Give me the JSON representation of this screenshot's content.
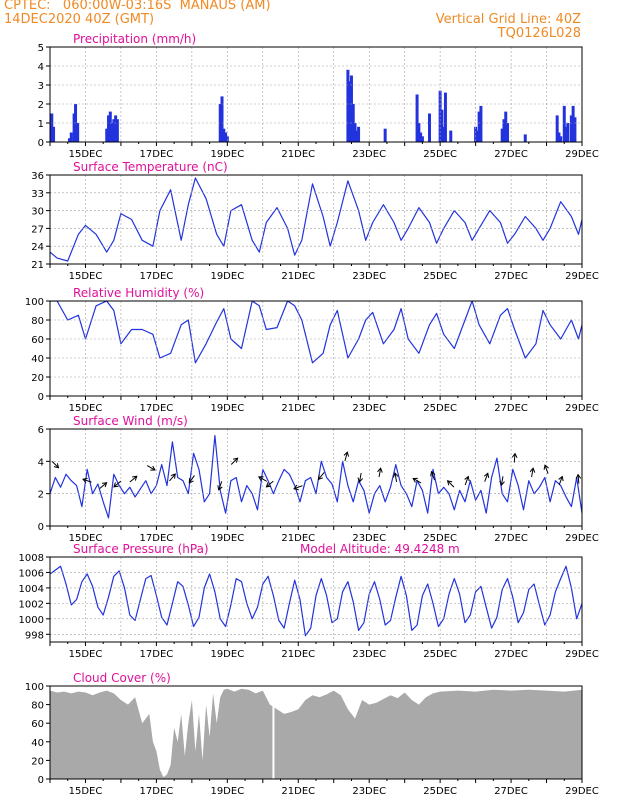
{
  "header": {
    "line1": "CPTEC:   060:00W-03:16S  MANAUS (AM)",
    "line2": "14DEC2020 40Z (GMT)",
    "right1": "Vertical Grid Line: 40Z",
    "right2": "TQ0126L028"
  },
  "colors": {
    "header": "#f08a24",
    "title": "#e0109a",
    "series": "#2233dd",
    "cloud": "#a9a9a9",
    "grid": "#a0a0a0",
    "arrow": "#000000"
  },
  "chart_data": [
    {
      "id": "precip",
      "type": "bar",
      "title": "Precipitation (mm/h)",
      "ylim": [
        0,
        5
      ],
      "yticks": [
        "0",
        "1",
        "2",
        "3",
        "4",
        "5"
      ],
      "xlim": [
        14.0,
        29.0
      ],
      "xticks": [
        "15DEC",
        "17DEC",
        "19DEC",
        "21DEC",
        "23DEC",
        "25DEC",
        "27DEC",
        "29DEC"
      ],
      "grid": true,
      "x": [
        14.05,
        14.1,
        14.55,
        14.6,
        14.68,
        14.72,
        14.78,
        15.6,
        15.65,
        15.7,
        15.75,
        15.8,
        15.85,
        15.9,
        18.8,
        18.85,
        18.9,
        18.95,
        19.0,
        22.4,
        22.45,
        22.5,
        22.55,
        22.6,
        22.65,
        22.7,
        23.45,
        24.35,
        24.4,
        24.45,
        24.5,
        24.7,
        25.0,
        25.05,
        25.1,
        25.15,
        25.3,
        26.0,
        26.05,
        26.1,
        26.15,
        26.75,
        26.8,
        26.85,
        26.9,
        27.4,
        28.3,
        28.35,
        28.4,
        28.5,
        28.55,
        28.6,
        28.7,
        28.75,
        28.8
      ],
      "values": [
        1.5,
        0.8,
        0.2,
        0.5,
        1.5,
        2.0,
        1.0,
        0.7,
        1.4,
        1.6,
        1.0,
        1.2,
        1.4,
        1.2,
        2.0,
        2.4,
        0.7,
        0.5,
        0.3,
        3.8,
        3.2,
        3.5,
        2.0,
        1.0,
        0.6,
        0.8,
        0.7,
        2.5,
        1.0,
        0.5,
        0.3,
        1.5,
        2.7,
        1.7,
        0.8,
        2.6,
        0.6,
        0.8,
        0.6,
        1.6,
        1.9,
        0.7,
        1.2,
        1.6,
        1.0,
        0.4,
        1.4,
        0.5,
        0.3,
        1.9,
        0.8,
        1.0,
        1.4,
        1.9,
        1.3
      ]
    },
    {
      "id": "temp",
      "type": "line",
      "title": "Surface Temperature (nC)",
      "ylim": [
        21,
        36
      ],
      "yticks": [
        "21",
        "24",
        "27",
        "30",
        "33",
        "36"
      ],
      "xlim": [
        14.0,
        29.0
      ],
      "xticks": [
        "15DEC",
        "17DEC",
        "19DEC",
        "21DEC",
        "23DEC",
        "25DEC",
        "27DEC",
        "29DEC"
      ],
      "grid": true,
      "x": [
        14.0,
        14.2,
        14.5,
        14.8,
        15.0,
        15.3,
        15.6,
        15.8,
        16.0,
        16.3,
        16.6,
        16.9,
        17.1,
        17.4,
        17.7,
        17.9,
        18.1,
        18.4,
        18.7,
        18.9,
        19.1,
        19.4,
        19.7,
        19.9,
        20.1,
        20.4,
        20.7,
        20.9,
        21.1,
        21.4,
        21.7,
        21.9,
        22.1,
        22.4,
        22.7,
        22.9,
        23.1,
        23.4,
        23.7,
        23.9,
        24.1,
        24.4,
        24.7,
        24.9,
        25.1,
        25.4,
        25.7,
        25.9,
        26.1,
        26.4,
        26.7,
        26.9,
        27.1,
        27.4,
        27.7,
        27.9,
        28.1,
        28.4,
        28.7,
        28.9,
        29.0
      ],
      "values": [
        23,
        22,
        21.5,
        26,
        27.5,
        26,
        23,
        25,
        29.5,
        28.5,
        25,
        24,
        30,
        33.5,
        25,
        31,
        35.5,
        32,
        26,
        24,
        30,
        31,
        25,
        23,
        28,
        30.5,
        27,
        22.5,
        25,
        34.5,
        29,
        24,
        28,
        35,
        30,
        25,
        28,
        31,
        28,
        25,
        27,
        30.5,
        28,
        24.5,
        27,
        30,
        28,
        25,
        27,
        30,
        28,
        24.5,
        26,
        29,
        27,
        25,
        27,
        31.5,
        29,
        26,
        28.5
      ]
    },
    {
      "id": "rh",
      "type": "line",
      "title": "Relative Humidity (%)",
      "ylim": [
        0,
        100
      ],
      "yticks": [
        "0",
        "20",
        "40",
        "60",
        "80",
        "100"
      ],
      "xlim": [
        14.0,
        29.0
      ],
      "xticks": [
        "15DEC",
        "17DEC",
        "19DEC",
        "21DEC",
        "23DEC",
        "25DEC",
        "27DEC",
        "29DEC"
      ],
      "grid": true,
      "x": [
        14.0,
        14.2,
        14.5,
        14.8,
        15.0,
        15.3,
        15.6,
        15.8,
        16.0,
        16.3,
        16.6,
        16.9,
        17.1,
        17.4,
        17.7,
        17.9,
        18.1,
        18.4,
        18.7,
        18.9,
        19.1,
        19.4,
        19.7,
        19.9,
        20.1,
        20.4,
        20.7,
        20.9,
        21.1,
        21.4,
        21.7,
        21.9,
        22.1,
        22.4,
        22.7,
        22.9,
        23.1,
        23.4,
        23.7,
        23.9,
        24.1,
        24.4,
        24.7,
        24.9,
        25.1,
        25.4,
        25.7,
        25.9,
        26.1,
        26.4,
        26.7,
        26.9,
        27.1,
        27.4,
        27.7,
        27.9,
        28.1,
        28.4,
        28.7,
        28.9,
        29.0
      ],
      "values": [
        100,
        100,
        80,
        85,
        60,
        95,
        100,
        90,
        55,
        70,
        70,
        65,
        40,
        45,
        75,
        80,
        35,
        55,
        78,
        92,
        60,
        50,
        100,
        95,
        70,
        72,
        100,
        95,
        80,
        35,
        45,
        75,
        90,
        40,
        60,
        80,
        88,
        55,
        70,
        92,
        60,
        45,
        75,
        87,
        65,
        50,
        80,
        100,
        75,
        55,
        85,
        92,
        70,
        40,
        55,
        90,
        75,
        60,
        80,
        60,
        75
      ]
    },
    {
      "id": "wind",
      "type": "line",
      "title": "Surface Wind (m/s)",
      "ylim": [
        0,
        6
      ],
      "yticks": [
        "0",
        "2",
        "4",
        "6"
      ],
      "xlim": [
        14.0,
        29.0
      ],
      "xticks": [
        "15DEC",
        "17DEC",
        "19DEC",
        "21DEC",
        "23DEC",
        "25DEC",
        "27DEC",
        "29DEC"
      ],
      "grid": true,
      "x": [
        14.0,
        14.15,
        14.3,
        14.45,
        14.6,
        14.75,
        14.9,
        15.05,
        15.2,
        15.35,
        15.5,
        15.65,
        15.8,
        15.95,
        16.1,
        16.25,
        16.4,
        16.55,
        16.7,
        16.85,
        17.0,
        17.15,
        17.3,
        17.45,
        17.6,
        17.75,
        17.9,
        18.05,
        18.2,
        18.35,
        18.5,
        18.65,
        18.8,
        18.95,
        19.1,
        19.25,
        19.4,
        19.55,
        19.7,
        19.85,
        20.0,
        20.15,
        20.3,
        20.45,
        20.6,
        20.75,
        20.9,
        21.05,
        21.2,
        21.35,
        21.5,
        21.65,
        21.8,
        21.95,
        22.1,
        22.25,
        22.4,
        22.55,
        22.7,
        22.85,
        23.0,
        23.15,
        23.3,
        23.45,
        23.6,
        23.75,
        23.9,
        24.05,
        24.2,
        24.35,
        24.5,
        24.65,
        24.8,
        24.95,
        25.1,
        25.25,
        25.4,
        25.55,
        25.7,
        25.85,
        26.0,
        26.15,
        26.3,
        26.45,
        26.6,
        26.75,
        26.9,
        27.05,
        27.2,
        27.35,
        27.5,
        27.65,
        27.8,
        27.95,
        28.1,
        28.25,
        28.4,
        28.55,
        28.7,
        28.85,
        29.0
      ],
      "values": [
        2.0,
        3.0,
        2.4,
        3.2,
        2.8,
        2.5,
        1.2,
        3.5,
        2.0,
        2.6,
        1.5,
        0.5,
        3.2,
        2.5,
        2.0,
        2.4,
        1.8,
        2.3,
        2.8,
        2.0,
        2.5,
        3.8,
        2.5,
        5.2,
        3.0,
        2.8,
        2.0,
        4.5,
        3.5,
        1.5,
        2.0,
        5.6,
        2.2,
        0.8,
        2.8,
        3.0,
        1.5,
        2.5,
        2.0,
        1.0,
        3.5,
        2.8,
        2.0,
        2.8,
        3.5,
        3.2,
        2.5,
        1.5,
        2.8,
        3.0,
        2.0,
        4.0,
        3.0,
        2.6,
        1.5,
        4.0,
        2.5,
        1.5,
        2.8,
        2.2,
        0.8,
        2.0,
        2.5,
        1.5,
        2.4,
        3.8,
        2.5,
        2.0,
        1.2,
        2.8,
        2.2,
        0.8,
        3.5,
        2.0,
        2.4,
        2.0,
        1.0,
        2.2,
        1.5,
        2.8,
        1.6,
        2.2,
        0.8,
        3.0,
        4.2,
        2.0,
        1.5,
        3.5,
        2.5,
        1.0,
        2.8,
        2.0,
        2.4,
        3.0,
        1.5,
        2.8,
        2.5,
        1.8,
        1.2,
        3.0,
        0.8
      ]
    },
    {
      "id": "press",
      "type": "line",
      "title": "Surface Pressure (hPa)",
      "annotation": "Model Altitude: 49.4248 m",
      "ylim": [
        997,
        1008
      ],
      "yticks": [
        "998",
        "1000",
        "1002",
        "1004",
        "1006",
        "1008"
      ],
      "xlim": [
        14.0,
        29.0
      ],
      "xticks": [
        "15DEC",
        "17DEC",
        "19DEC",
        "21DEC",
        "23DEC",
        "25DEC",
        "27DEC",
        "29DEC"
      ],
      "grid": true,
      "x": [
        14.0,
        14.15,
        14.3,
        14.45,
        14.6,
        14.75,
        14.9,
        15.05,
        15.2,
        15.35,
        15.5,
        15.65,
        15.8,
        15.95,
        16.1,
        16.25,
        16.4,
        16.55,
        16.7,
        16.85,
        17.0,
        17.15,
        17.3,
        17.45,
        17.6,
        17.75,
        17.9,
        18.05,
        18.2,
        18.35,
        18.5,
        18.65,
        18.8,
        18.95,
        19.1,
        19.25,
        19.4,
        19.55,
        19.7,
        19.85,
        20.0,
        20.15,
        20.3,
        20.45,
        20.6,
        20.75,
        20.9,
        21.05,
        21.2,
        21.35,
        21.5,
        21.65,
        21.8,
        21.95,
        22.1,
        22.25,
        22.4,
        22.55,
        22.7,
        22.85,
        23.0,
        23.15,
        23.3,
        23.45,
        23.6,
        23.75,
        23.9,
        24.05,
        24.2,
        24.35,
        24.5,
        24.65,
        24.8,
        24.95,
        25.1,
        25.25,
        25.4,
        25.55,
        25.7,
        25.85,
        26.0,
        26.15,
        26.3,
        26.45,
        26.6,
        26.75,
        26.9,
        27.05,
        27.2,
        27.35,
        27.5,
        27.65,
        27.8,
        27.95,
        28.1,
        28.25,
        28.4,
        28.55,
        28.7,
        28.85,
        29.0
      ],
      "values": [
        1005.8,
        1006.3,
        1006.8,
        1004.5,
        1001.8,
        1002.5,
        1004.8,
        1005.8,
        1004.2,
        1001.5,
        1000.5,
        1002.8,
        1005.5,
        1006.2,
        1004.0,
        1000.5,
        999.8,
        1002.5,
        1005.2,
        1005.6,
        1003.0,
        1000.2,
        999.2,
        1002.0,
        1004.8,
        1004.2,
        1001.8,
        999.0,
        1000.2,
        1004.0,
        1005.8,
        1003.5,
        1000.0,
        999.0,
        1001.8,
        1005.2,
        1004.8,
        1002.0,
        1000.0,
        1001.5,
        1004.5,
        1005.5,
        1003.0,
        999.8,
        998.8,
        1002.0,
        1005.0,
        1002.5,
        997.8,
        998.8,
        1003.0,
        1005.2,
        1003.0,
        999.5,
        1000.0,
        1003.5,
        1004.8,
        1002.2,
        998.5,
        999.5,
        1003.2,
        1004.8,
        1002.5,
        999.2,
        999.8,
        1002.8,
        1005.5,
        1003.0,
        998.5,
        999.2,
        1003.0,
        1004.5,
        1002.0,
        999.0,
        1000.0,
        1003.2,
        1005.2,
        1003.2,
        999.5,
        1000.5,
        1003.5,
        1004.2,
        1001.5,
        998.8,
        1000.2,
        1003.8,
        1005.2,
        1002.8,
        999.5,
        1000.8,
        1003.8,
        1004.5,
        1001.8,
        999.2,
        1000.5,
        1003.5,
        1005.2,
        1006.8,
        1004.0,
        1000.0,
        1002.0
      ]
    },
    {
      "id": "cloud",
      "type": "area",
      "title": "Cloud Cover (%)",
      "ylim": [
        0,
        100
      ],
      "yticks": [
        "0",
        "20",
        "40",
        "60",
        "80",
        "100"
      ],
      "xlim": [
        14.0,
        29.0
      ],
      "xticks": [
        "15DEC",
        "17DEC",
        "19DEC",
        "21DEC",
        "23DEC",
        "25DEC",
        "27DEC",
        "29DEC"
      ],
      "grid": false,
      "x": [
        14.0,
        14.2,
        14.4,
        14.6,
        14.8,
        15.0,
        15.2,
        15.4,
        15.6,
        15.8,
        16.0,
        16.2,
        16.4,
        16.6,
        16.8,
        16.9,
        17.0,
        17.1,
        17.2,
        17.3,
        17.4,
        17.5,
        17.6,
        17.7,
        17.8,
        17.9,
        18.0,
        18.1,
        18.2,
        18.3,
        18.4,
        18.5,
        18.6,
        18.7,
        18.8,
        18.9,
        19.0,
        19.2,
        19.4,
        19.6,
        19.8,
        20.0,
        20.2,
        20.4,
        20.6,
        20.8,
        21.0,
        21.2,
        21.4,
        21.6,
        21.8,
        22.0,
        22.2,
        22.4,
        22.6,
        22.8,
        23.0,
        23.2,
        23.4,
        23.6,
        23.8,
        24.0,
        24.2,
        24.4,
        24.6,
        24.8,
        25.0,
        25.5,
        26.0,
        26.5,
        27.0,
        27.5,
        28.0,
        28.5,
        29.0
      ],
      "values": [
        95,
        93,
        94,
        92,
        94,
        93,
        90,
        93,
        95,
        92,
        85,
        80,
        88,
        60,
        70,
        40,
        30,
        10,
        2,
        5,
        15,
        55,
        40,
        70,
        25,
        60,
        85,
        30,
        70,
        20,
        80,
        45,
        92,
        60,
        88,
        96,
        97,
        94,
        97,
        96,
        92,
        95,
        80,
        75,
        70,
        72,
        75,
        85,
        90,
        88,
        91,
        95,
        90,
        75,
        65,
        85,
        80,
        82,
        86,
        90,
        87,
        93,
        85,
        80,
        88,
        92,
        94,
        95,
        94,
        96,
        95,
        96,
        95,
        94,
        96
      ],
      "notch_x": 20.3
    }
  ],
  "wind_arrows": [
    {
      "x": 14.15,
      "v": 3.8,
      "dir": 135
    },
    {
      "x": 15.05,
      "v": 2.8,
      "dir": 290
    },
    {
      "x": 15.5,
      "v": 2.5,
      "dir": 50
    },
    {
      "x": 15.9,
      "v": 2.6,
      "dir": 230
    },
    {
      "x": 16.35,
      "v": 2.9,
      "dir": 50
    },
    {
      "x": 16.85,
      "v": 3.6,
      "dir": 120
    },
    {
      "x": 17.45,
      "v": 3.0,
      "dir": 40
    },
    {
      "x": 18.0,
      "v": 2.9,
      "dir": 215
    },
    {
      "x": 18.8,
      "v": 2.5,
      "dir": 200
    },
    {
      "x": 19.2,
      "v": 4.0,
      "dir": 45
    },
    {
      "x": 20.0,
      "v": 2.9,
      "dir": 300
    },
    {
      "x": 20.2,
      "v": 2.6,
      "dir": 230
    },
    {
      "x": 21.0,
      "v": 2.4,
      "dir": 250
    },
    {
      "x": 21.65,
      "v": 3.1,
      "dir": 220
    },
    {
      "x": 22.35,
      "v": 4.3,
      "dir": 15
    },
    {
      "x": 22.75,
      "v": 3.0,
      "dir": 190
    },
    {
      "x": 23.3,
      "v": 3.3,
      "dir": 10
    },
    {
      "x": 23.75,
      "v": 3.0,
      "dir": 350
    },
    {
      "x": 24.35,
      "v": 2.8,
      "dir": 300
    },
    {
      "x": 24.8,
      "v": 3.1,
      "dir": 340
    },
    {
      "x": 25.3,
      "v": 2.6,
      "dir": 315
    },
    {
      "x": 25.75,
      "v": 2.8,
      "dir": 20
    },
    {
      "x": 26.3,
      "v": 3.0,
      "dir": 20
    },
    {
      "x": 26.75,
      "v": 2.8,
      "dir": 190
    },
    {
      "x": 27.1,
      "v": 4.2,
      "dir": 5
    },
    {
      "x": 27.6,
      "v": 3.3,
      "dir": 10
    },
    {
      "x": 28.0,
      "v": 3.5,
      "dir": 340
    },
    {
      "x": 28.4,
      "v": 2.8,
      "dir": 20
    },
    {
      "x": 28.9,
      "v": 2.9,
      "dir": 355
    }
  ]
}
